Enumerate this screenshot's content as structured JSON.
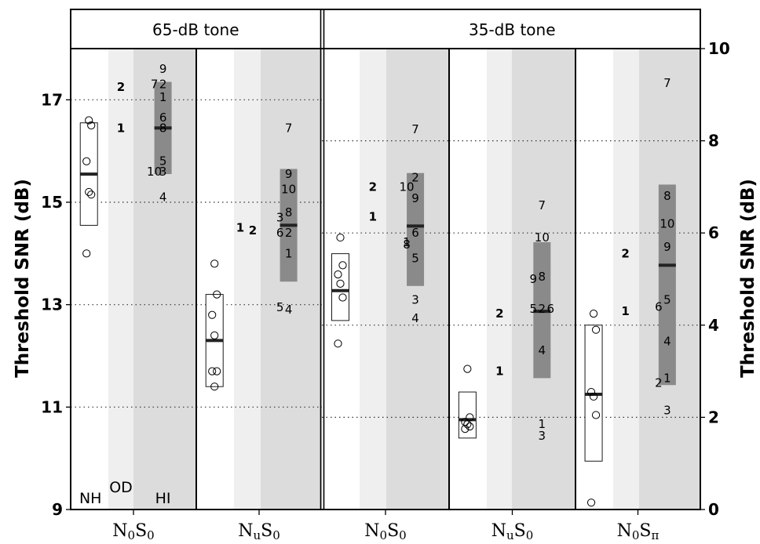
{
  "chart_data": {
    "type": "scatter",
    "ylabel_left": "Threshold SNR (dB)",
    "ylabel_right": "Threshold SNR (dB)",
    "left_axis": {
      "ylim": [
        9,
        18
      ],
      "ticks": [
        "9",
        "11",
        "13",
        "15",
        "17"
      ]
    },
    "right_axis": {
      "ylim": [
        0,
        10
      ],
      "ticks": [
        "0",
        "2",
        "4",
        "6",
        "8",
        "10"
      ]
    },
    "groups": [
      "NH",
      "OD",
      "HI"
    ],
    "panels": [
      {
        "strip": "65-dB tone",
        "axis": "left",
        "cond_main": "N",
        "cond_sub1": "0",
        "cond_main2": "S",
        "cond_sub2": "0",
        "show_group_labels": true,
        "nh": {
          "points": [
            16.6,
            16.5,
            15.8,
            15.2,
            15.15,
            14.0
          ],
          "mean": 15.55,
          "box": [
            14.55,
            16.55
          ]
        },
        "od": [
          {
            "label": "2",
            "y": 17.25
          },
          {
            "label": "1",
            "y": 16.45
          }
        ],
        "hi": {
          "mean": 16.45,
          "box": [
            15.55,
            17.35
          ],
          "points": [
            {
              "label": "9",
              "y": 17.6
            },
            {
              "label": "2",
              "y": 17.3
            },
            {
              "label": "7",
              "y": 17.3
            },
            {
              "label": "1",
              "y": 17.05
            },
            {
              "label": "6",
              "y": 16.65
            },
            {
              "label": "8",
              "y": 16.45
            },
            {
              "label": "5",
              "y": 15.8
            },
            {
              "label": "3",
              "y": 15.6
            },
            {
              "label": "10",
              "y": 15.6
            },
            {
              "label": "4",
              "y": 15.1
            }
          ]
        }
      },
      {
        "strip": "",
        "axis": "left",
        "cond_main": "N",
        "cond_sub1": "u",
        "cond_main2": "S",
        "cond_sub2": "0",
        "show_group_labels": false,
        "nh": {
          "points": [
            13.8,
            13.2,
            12.8,
            12.4,
            11.7,
            11.7,
            11.4
          ],
          "mean": 12.3,
          "box": [
            11.4,
            13.2
          ]
        },
        "od": [
          {
            "label": "1",
            "y": 14.5
          },
          {
            "label": "2",
            "y": 14.45
          }
        ],
        "hi": {
          "mean": 14.55,
          "box": [
            13.45,
            15.65
          ],
          "points": [
            {
              "label": "7",
              "y": 16.45
            },
            {
              "label": "9",
              "y": 15.55
            },
            {
              "label": "10",
              "y": 15.25
            },
            {
              "label": "8",
              "y": 14.8
            },
            {
              "label": "3",
              "y": 14.7
            },
            {
              "label": "2",
              "y": 14.4
            },
            {
              "label": "6",
              "y": 14.4
            },
            {
              "label": "1",
              "y": 14.0
            },
            {
              "label": "4",
              "y": 12.9
            },
            {
              "label": "5",
              "y": 12.95
            }
          ]
        }
      },
      {
        "strip": "35-dB tone",
        "axis": "right",
        "cond_main": "N",
        "cond_sub1": "0",
        "cond_main2": "S",
        "cond_sub2": "0",
        "show_group_labels": false,
        "nh": {
          "points": [
            5.9,
            5.3,
            5.1,
            4.9,
            4.6,
            3.6
          ],
          "mean": 4.75,
          "box": [
            4.1,
            5.55
          ]
        },
        "od": [
          {
            "label": "2",
            "y": 7.0
          },
          {
            "label": "1",
            "y": 6.35
          }
        ],
        "hi": {
          "mean": 6.15,
          "box": [
            4.85,
            7.3
          ],
          "points": [
            {
              "label": "7",
              "y": 8.25
            },
            {
              "label": "2",
              "y": 7.2
            },
            {
              "label": "10",
              "y": 7.0
            },
            {
              "label": "9",
              "y": 6.75
            },
            {
              "label": "6",
              "y": 6.0
            },
            {
              "label": "1",
              "y": 5.8
            },
            {
              "label": "8",
              "y": 5.75
            },
            {
              "label": "5",
              "y": 5.45
            },
            {
              "label": "3",
              "y": 4.55
            },
            {
              "label": "4",
              "y": 4.15
            }
          ]
        }
      },
      {
        "strip": "",
        "axis": "right",
        "cond_main": "N",
        "cond_sub1": "u",
        "cond_main2": "S",
        "cond_sub2": "0",
        "show_group_labels": false,
        "nh": {
          "points": [
            3.05,
            2.0,
            1.9,
            1.85,
            1.8,
            1.75
          ],
          "mean": 1.95,
          "box": [
            1.55,
            2.55
          ]
        },
        "od": [
          {
            "label": "2",
            "y": 4.25
          },
          {
            "label": "1",
            "y": 3.0
          }
        ],
        "hi": {
          "mean": 4.3,
          "box": [
            2.85,
            5.8
          ],
          "points": [
            {
              "label": "7",
              "y": 6.6
            },
            {
              "label": "10",
              "y": 5.9
            },
            {
              "label": "8",
              "y": 5.05
            },
            {
              "label": "9",
              "y": 5.0
            },
            {
              "label": "2",
              "y": 4.35
            },
            {
              "label": "5",
              "y": 4.35
            },
            {
              "label": "6",
              "y": 4.35
            },
            {
              "label": "4",
              "y": 3.45
            },
            {
              "label": "1",
              "y": 1.85
            },
            {
              "label": "3",
              "y": 1.6
            }
          ]
        }
      },
      {
        "strip": "",
        "axis": "right",
        "cond_main": "N",
        "cond_sub1": "0",
        "cond_main2": "S",
        "cond_sub2": "π",
        "show_group_labels": false,
        "nh": {
          "points": [
            4.25,
            3.9,
            2.55,
            2.45,
            2.05,
            0.15
          ],
          "mean": 2.5,
          "box": [
            1.05,
            4.0
          ]
        },
        "od": [
          {
            "label": "2",
            "y": 5.55
          },
          {
            "label": "1",
            "y": 4.3
          }
        ],
        "hi": {
          "mean": 5.3,
          "box": [
            2.7,
            7.05
          ],
          "points": [
            {
              "label": "7",
              "y": 9.25
            },
            {
              "label": "8",
              "y": 6.8
            },
            {
              "label": "10",
              "y": 6.2
            },
            {
              "label": "9",
              "y": 5.7
            },
            {
              "label": "5",
              "y": 4.55
            },
            {
              "label": "6",
              "y": 4.4
            },
            {
              "label": "4",
              "y": 3.65
            },
            {
              "label": "1",
              "y": 2.85
            },
            {
              "label": "2",
              "y": 2.75
            },
            {
              "label": "3",
              "y": 2.15
            }
          ]
        }
      }
    ]
  }
}
